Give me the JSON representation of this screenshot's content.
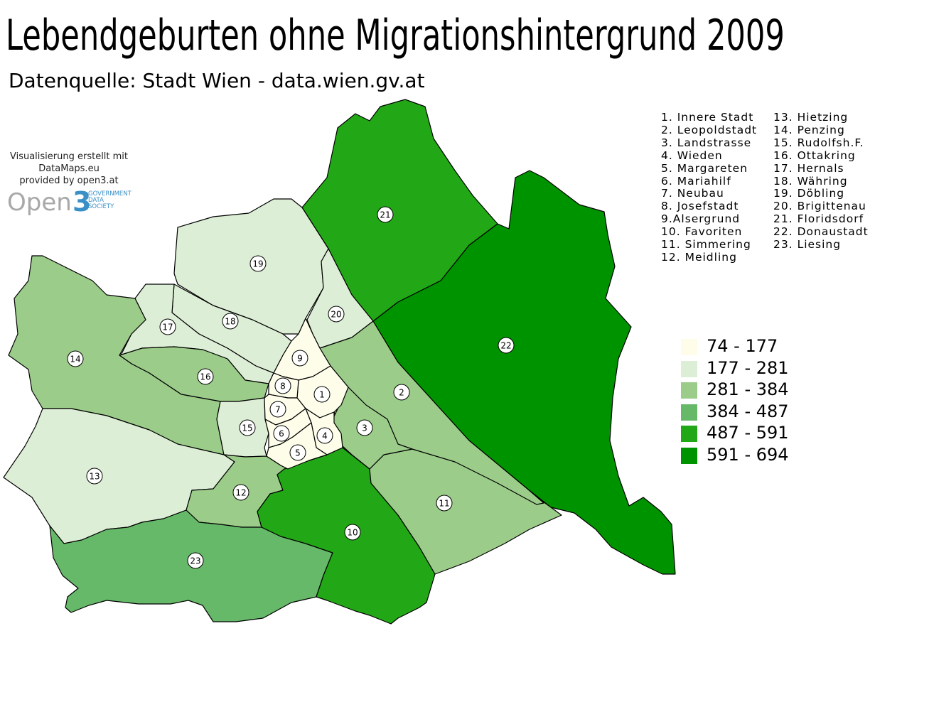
{
  "title": "Lebendgeburten ohne Migrationshintergrund 2009",
  "subtitle": "Datenquelle: Stadt Wien - data.wien.gv.at",
  "credit": {
    "line1": "Visualisierung erstellt mit",
    "line2": "DataMaps.eu",
    "line3": "provided by open3.at"
  },
  "logo": {
    "word": "Open",
    "digit": "3",
    "small1": "GOVERNMENT",
    "small2": "DATA",
    "small3": "SOCIETY"
  },
  "district_list_col1": [
    "1. Innere Stadt",
    "2. Leopoldstadt",
    "3. Landstrasse",
    "4. Wieden",
    "5. Margareten",
    "6. Mariahilf",
    "7. Neubau",
    "8. Josefstadt",
    "9.Alsergrund",
    "10. Favoriten",
    "11. Simmering",
    "12. Meidling"
  ],
  "district_list_col2": [
    "13. Hietzing",
    "14. Penzing",
    "15. Rudolfsh.F.",
    "16. Ottakring",
    "17. Hernals",
    "18. Währing",
    "19. Döbling",
    "20. Brigittenau",
    "21. Floridsdorf",
    "22. Donaustadt",
    "23. Liesing"
  ],
  "legend": [
    {
      "label": "74 - 177",
      "color": "#fdfdea"
    },
    {
      "label": "177 - 281",
      "color": "#ddeed6"
    },
    {
      "label": "281 - 384",
      "color": "#9bcc8a"
    },
    {
      "label": "384 - 487",
      "color": "#67b96a"
    },
    {
      "label": "487 - 591",
      "color": "#22a816"
    },
    {
      "label": "591 - 694",
      "color": "#009300"
    }
  ],
  "districts": [
    {
      "num": "1",
      "cls": 0
    },
    {
      "num": "2",
      "cls": 2
    },
    {
      "num": "3",
      "cls": 2
    },
    {
      "num": "4",
      "cls": 0
    },
    {
      "num": "5",
      "cls": 0
    },
    {
      "num": "6",
      "cls": 0
    },
    {
      "num": "7",
      "cls": 0
    },
    {
      "num": "8",
      "cls": 0
    },
    {
      "num": "9",
      "cls": 0
    },
    {
      "num": "10",
      "cls": 4
    },
    {
      "num": "11",
      "cls": 2
    },
    {
      "num": "12",
      "cls": 2
    },
    {
      "num": "13",
      "cls": 1
    },
    {
      "num": "14",
      "cls": 2
    },
    {
      "num": "15",
      "cls": 1
    },
    {
      "num": "16",
      "cls": 2
    },
    {
      "num": "17",
      "cls": 1
    },
    {
      "num": "18",
      "cls": 1
    },
    {
      "num": "19",
      "cls": 1
    },
    {
      "num": "20",
      "cls": 1
    },
    {
      "num": "21",
      "cls": 4
    },
    {
      "num": "22",
      "cls": 5
    },
    {
      "num": "23",
      "cls": 3
    }
  ]
}
